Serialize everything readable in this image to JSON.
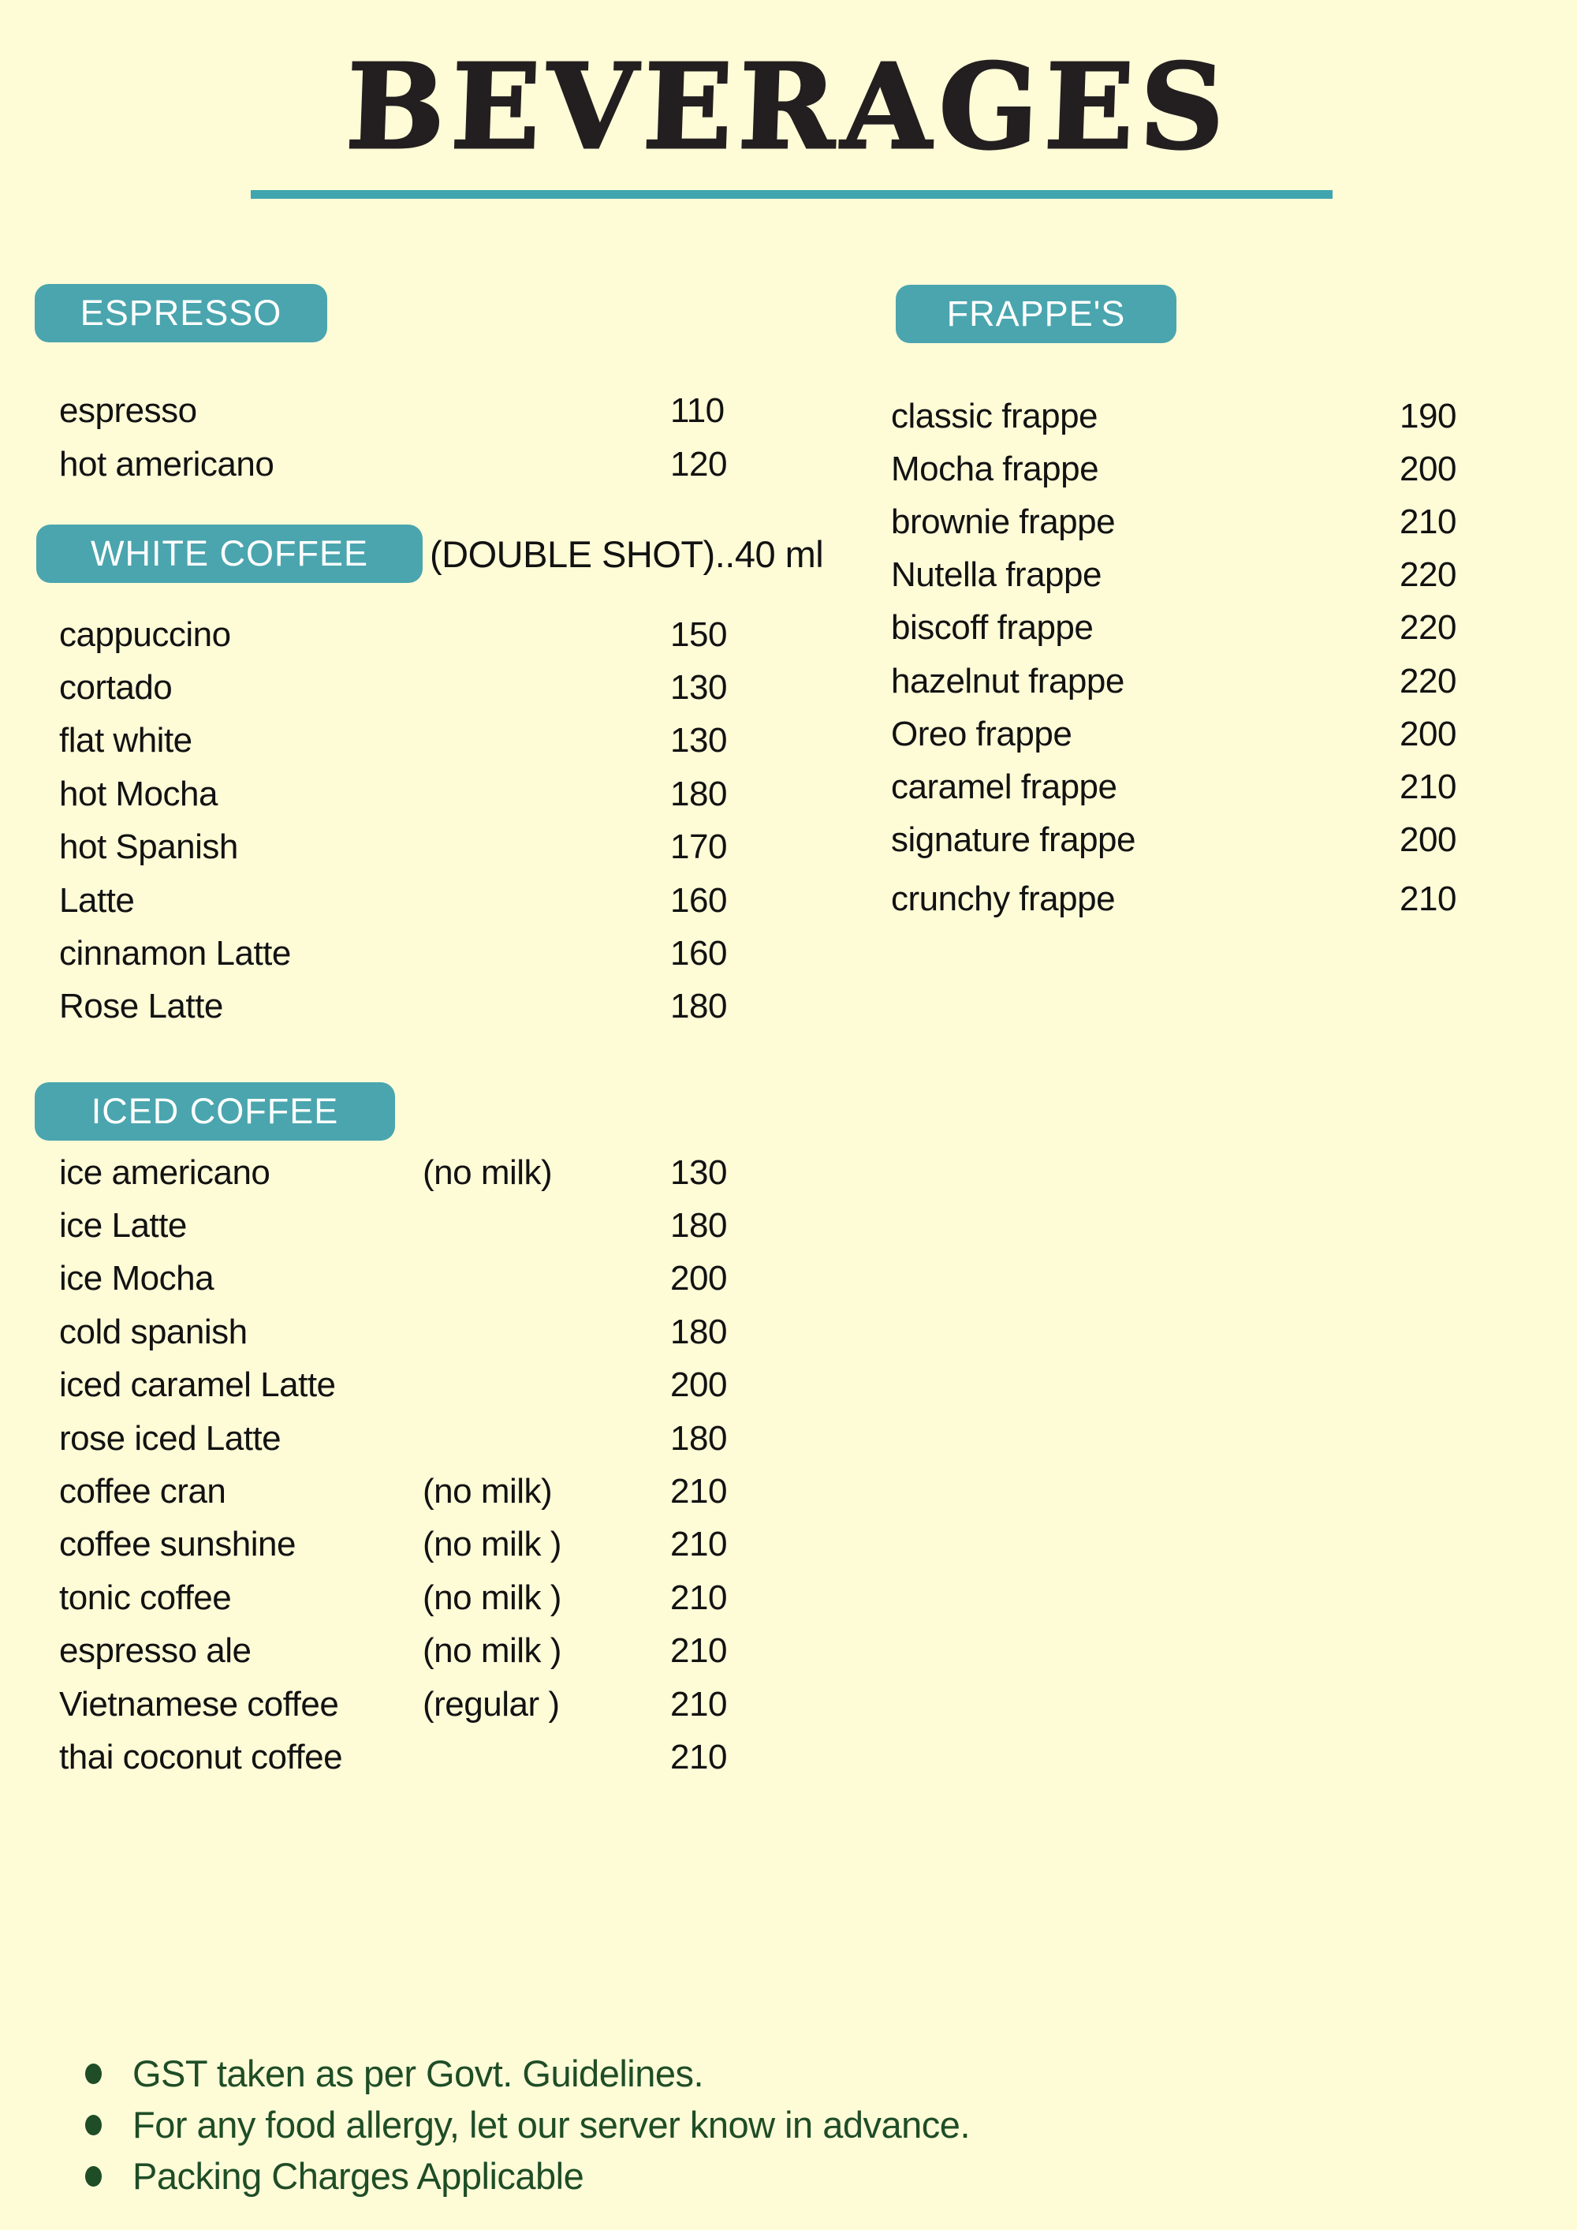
{
  "page": {
    "title": "BEVERAGES",
    "background_color": "#FEFBD7",
    "accent_color": "#4AA5AE",
    "title_color": "#231F20",
    "note_color": "#1E4D26"
  },
  "sections": [
    {
      "label": "ESPRESSO",
      "items": [
        {
          "name": "espresso",
          "price": "110"
        },
        {
          "name": "hot americano",
          "price": "120"
        }
      ]
    },
    {
      "label": "WHITE COFFEE",
      "suffix": "(DOUBLE SHOT)..40 ml",
      "items": [
        {
          "name": "cappuccino",
          "price": "150"
        },
        {
          "name": "cortado",
          "price": "130"
        },
        {
          "name": "flat white",
          "price": "130"
        },
        {
          "name": "hot Mocha",
          "price": "180"
        },
        {
          "name": "hot Spanish",
          "price": "170"
        },
        {
          "name": "Latte",
          "price": "160"
        },
        {
          "name": "cinnamon Latte",
          "price": "160"
        },
        {
          "name": "Rose Latte",
          "price": "180"
        }
      ]
    },
    {
      "label": "ICED COFFEE",
      "items": [
        {
          "name": "ice americano",
          "note": "(no milk)",
          "price": "130"
        },
        {
          "name": "ice Latte",
          "price": "180"
        },
        {
          "name": "ice Mocha",
          "price": "200"
        },
        {
          "name": "cold spanish",
          "price": "180"
        },
        {
          "name": "iced caramel Latte",
          "price": "200"
        },
        {
          "name": "rose iced Latte",
          "price": "180"
        },
        {
          "name": "coffee cran",
          "note": "(no milk)",
          "price": "210"
        },
        {
          "name": "coffee sunshine",
          "note": "(no milk )",
          "price": "210"
        },
        {
          "name": "tonic coffee",
          "note": "(no milk )",
          "price": "210"
        },
        {
          "name": "espresso ale",
          "note": "(no milk )",
          "price": "210"
        },
        {
          "name": "Vietnamese coffee",
          "note": "(regular )",
          "price": "210"
        },
        {
          "name": "thai coconut coffee",
          "price": "210"
        }
      ]
    },
    {
      "label": "FRAPPE'S",
      "items": [
        {
          "name": "classic frappe",
          "price": "190"
        },
        {
          "name": "Mocha frappe",
          "price": "200"
        },
        {
          "name": "brownie frappe",
          "price": "210"
        },
        {
          "name": "Nutella frappe",
          "price": "220"
        },
        {
          "name": "biscoff frappe",
          "price": "220"
        },
        {
          "name": "hazelnut frappe",
          "price": "220"
        },
        {
          "name": "Oreo frappe",
          "price": "200"
        },
        {
          "name": "caramel frappe",
          "price": "210"
        },
        {
          "name": "signature frappe",
          "price": "200"
        },
        {
          "name": "crunchy frappe",
          "price": "210"
        }
      ]
    }
  ],
  "notes": [
    "GST taken as per Govt. Guidelines.",
    "For any food allergy, let our server know in advance.",
    "Packing Charges Applicable"
  ]
}
